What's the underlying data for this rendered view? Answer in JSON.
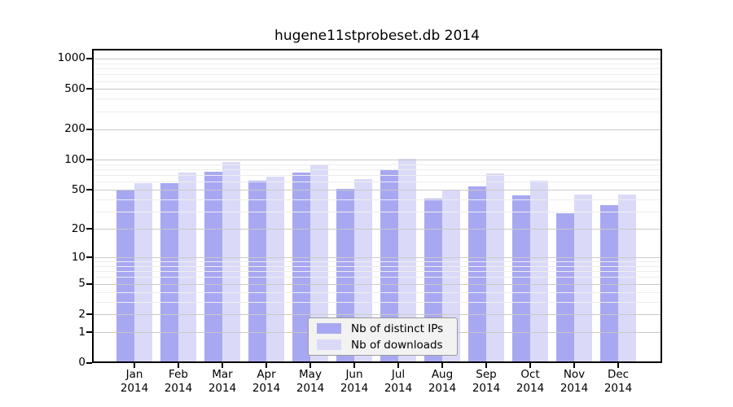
{
  "title": "hugene11stprobeset.db 2014",
  "colors": {
    "bar_distinct_ips": "#a8a8f2",
    "bar_downloads": "#dadaf8",
    "grid_major": "#c9c9c9",
    "grid_minor": "#ededed",
    "axis": "#000000",
    "legend_bg": "#f2f2f2"
  },
  "chart_data": {
    "type": "bar",
    "title": "hugene11stprobeset.db 2014",
    "categories": [
      "Jan",
      "Feb",
      "Mar",
      "Apr",
      "May",
      "Jun",
      "Jul",
      "Aug",
      "Sep",
      "Oct",
      "Nov",
      "Dec"
    ],
    "category_year": "2014",
    "series": [
      {
        "name": "Nb of distinct IPs",
        "color": "#a8a8f2",
        "values": [
          50,
          58,
          76,
          62,
          74,
          51,
          78,
          41,
          54,
          44,
          29,
          35
        ]
      },
      {
        "name": "Nb of downloads",
        "color": "#dadaf8",
        "values": [
          58,
          74,
          95,
          67,
          90,
          64,
          102,
          50,
          73,
          61,
          45,
          45
        ]
      }
    ],
    "xlabel": "",
    "ylabel": "",
    "y_scale": "log1p",
    "ylim": [
      0,
      1250
    ],
    "y_ticks": [
      0,
      1,
      2,
      5,
      10,
      20,
      50,
      100,
      200,
      500,
      1000
    ],
    "y_gridlines_major": [
      1,
      2,
      5,
      10,
      20,
      50,
      100,
      200,
      500,
      1000
    ],
    "y_gridlines_minor": [
      3,
      4,
      6,
      7,
      8,
      9,
      30,
      40,
      60,
      70,
      80,
      90,
      300,
      400,
      600,
      700,
      800,
      900
    ],
    "grid": true,
    "legend_position": "bottom-center"
  }
}
